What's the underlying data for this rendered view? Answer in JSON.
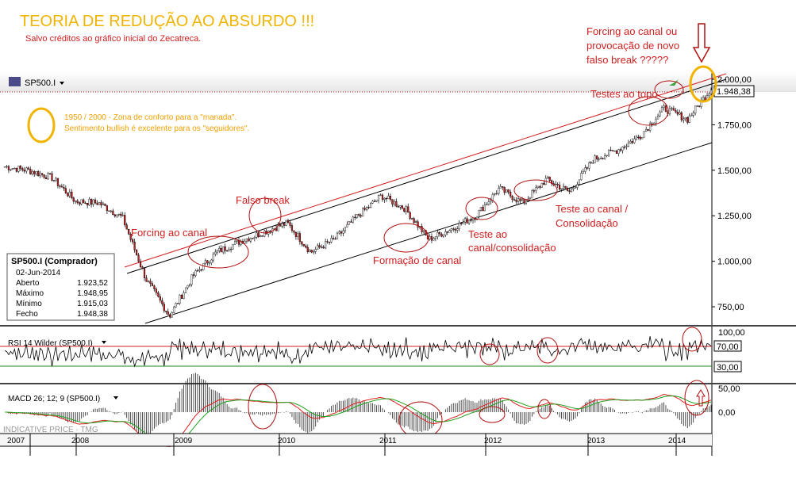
{
  "header": {
    "title": "TEORIA DE REDUÇÃO AO ABSURDO !!!",
    "subtitle": "Salvo créditos ao gráfico inicial do Zecatreca."
  },
  "symbol": {
    "name": "SP500.I"
  },
  "annotations": {
    "forcing_top": [
      "Forcing ao canal ou",
      "provocação de novo",
      "falso break      ?????"
    ],
    "comfort": [
      "1950 / 2000 - Zona de conforto para a \"manada\".",
      "Sentimento bullish é excelente para os \"seguidores\"."
    ],
    "testes_topo": "Testes ao topo",
    "falso_break": "Falso break",
    "forcing_canal": "Forcing ao canal",
    "formacao": "Formação de canal",
    "teste_canal_consol": [
      "Teste ao",
      "canal/consolidação"
    ],
    "teste_canal_consol2": [
      "Teste ao canal /",
      "Consolidação"
    ]
  },
  "infobox": {
    "title": "SP500.I (Comprador)",
    "date": "02-Jun-2014",
    "rows": [
      {
        "label": "Aberto",
        "value": "1.923,52"
      },
      {
        "label": "Máximo",
        "value": "1.948,95"
      },
      {
        "label": "Mínimo",
        "value": "1.915,03"
      },
      {
        "label": "Fecho",
        "value": "1.948,38"
      }
    ]
  },
  "price_axis": {
    "ticks": [
      "2.000,00",
      "1.750,00",
      "1.500,00",
      "1.250,00",
      "1.000,00",
      "750,00"
    ],
    "last": "1.948,38"
  },
  "rsi": {
    "label": "RSI 14 Wilder (SP500.I)",
    "ticks": [
      "100,00",
      "70,00",
      "30,00"
    ]
  },
  "macd": {
    "label": "MACD 26; 12; 9 (SP500.I)",
    "ticks": [
      "50,00",
      "0,00"
    ],
    "watermark": "INDICATIVE PRICE · TMG"
  },
  "years": [
    "2007",
    "2008",
    "2009",
    "2010",
    "2011",
    "2012",
    "2013",
    "2014"
  ],
  "colors": {
    "title": "#f0b400",
    "annotation": "#d02020",
    "channel_red": "#d02020",
    "channel_black": "#000000",
    "rsi_line": "#000000",
    "macd_red": "#e02020",
    "macd_green": "#20a020",
    "circle_yellow": "#f0b400",
    "circle_red": "#b01010"
  },
  "chart_data": {
    "type": "line",
    "title": "SP500.I",
    "x": [
      "2007-06",
      "2007-09",
      "2007-12",
      "2008-03",
      "2008-06",
      "2008-09",
      "2008-12",
      "2009-03",
      "2009-06",
      "2009-09",
      "2009-12",
      "2010-03",
      "2010-04",
      "2010-07",
      "2010-09",
      "2010-12",
      "2011-04",
      "2011-06",
      "2011-08",
      "2011-10",
      "2011-12",
      "2012-04",
      "2012-06",
      "2012-09",
      "2012-11",
      "2013-03",
      "2013-06",
      "2013-09",
      "2013-12",
      "2014-02",
      "2014-06"
    ],
    "series": [
      {
        "values": [
          1520,
          1500,
          1460,
          1330,
          1320,
          1240,
          900,
          700,
          920,
          1050,
          1110,
          1160,
          1210,
          1050,
          1120,
          1250,
          1360,
          1290,
          1120,
          1180,
          1250,
          1400,
          1320,
          1450,
          1380,
          1560,
          1610,
          1690,
          1840,
          1780,
          1948
        ]
      }
    ],
    "ylim": [
      650,
      2050
    ],
    "grid": false
  }
}
